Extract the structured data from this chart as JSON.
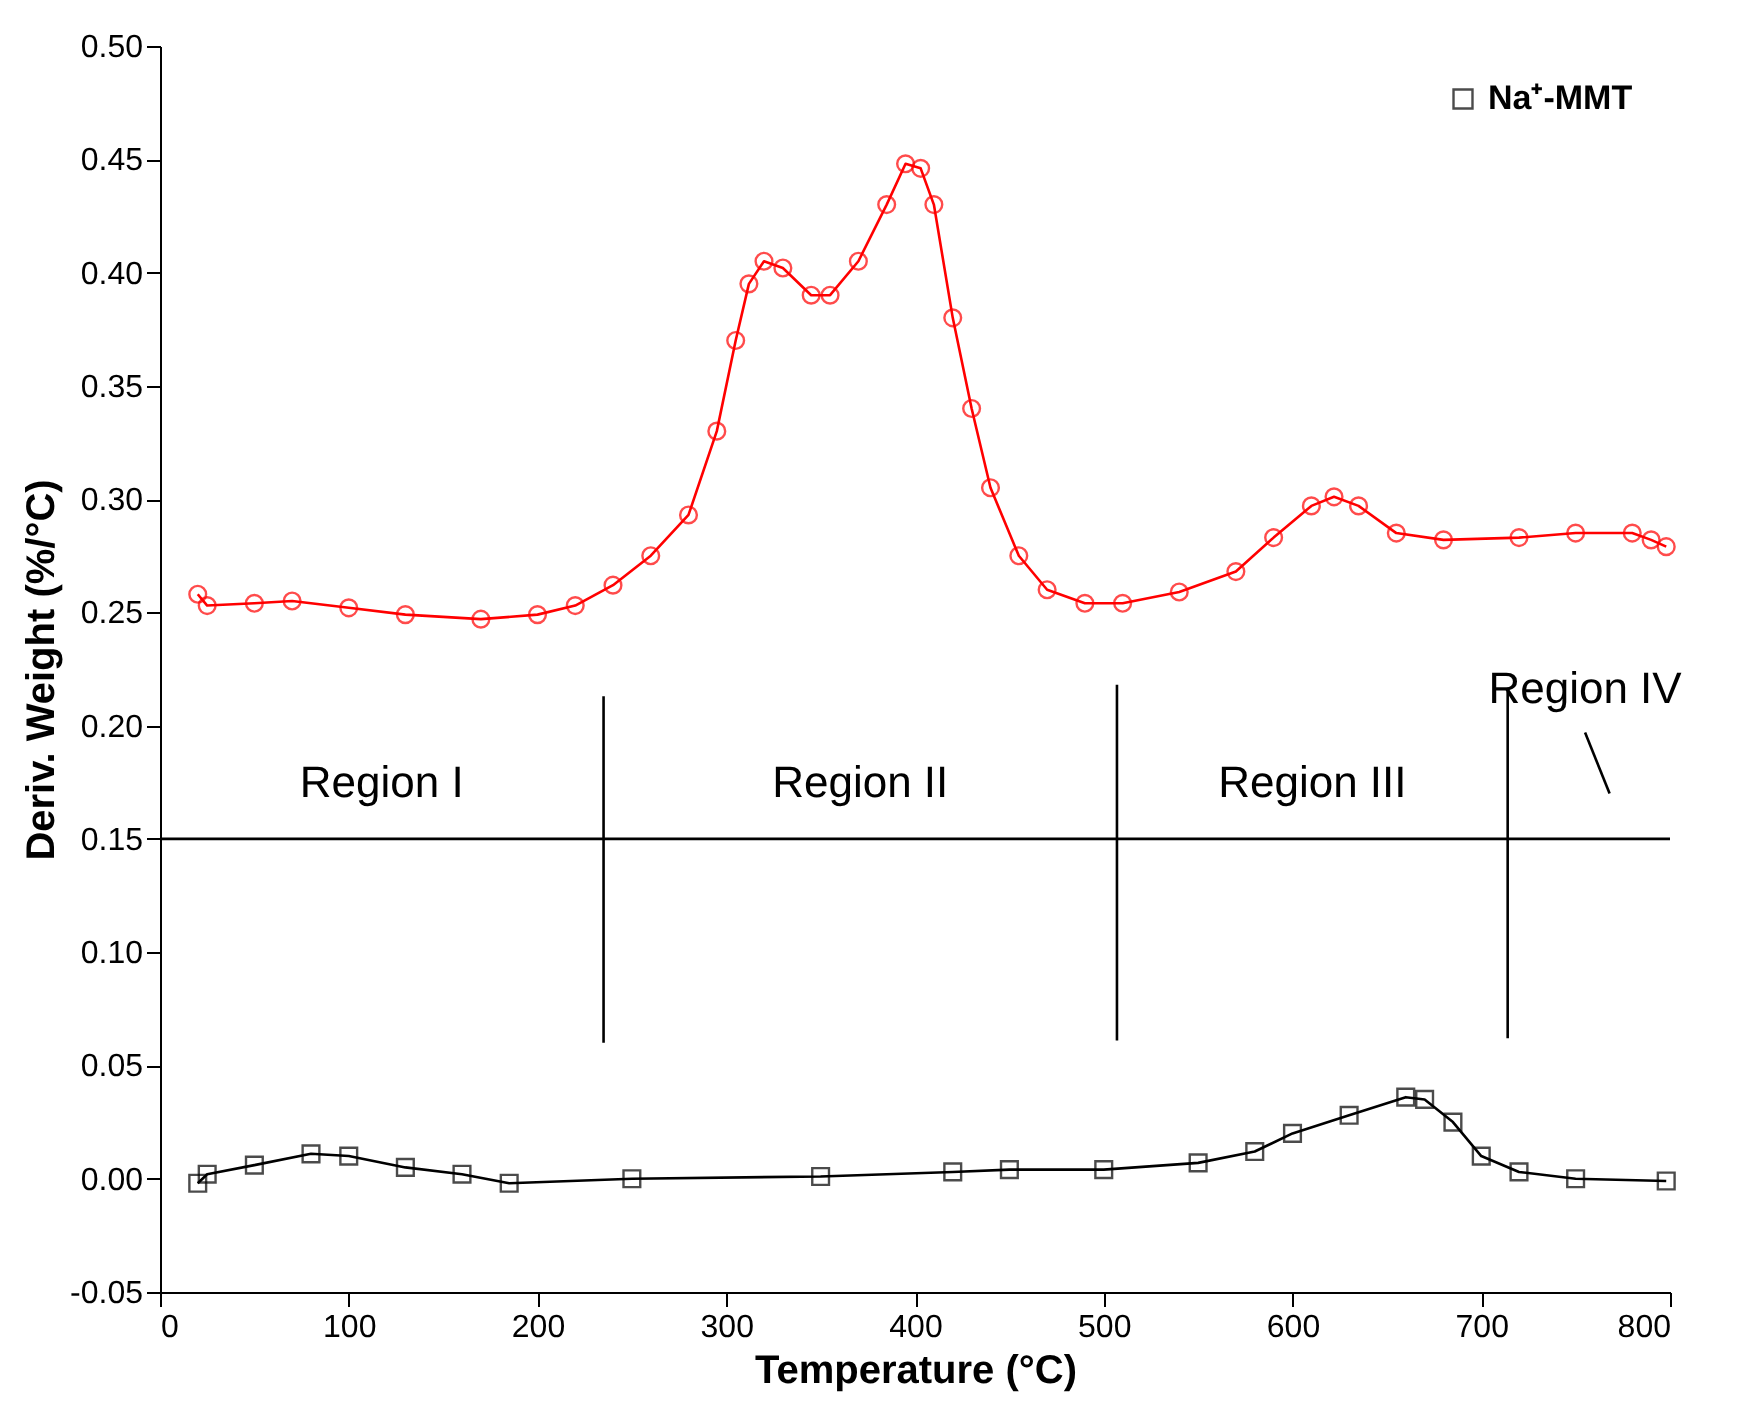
{
  "chart_data": {
    "type": "line",
    "xlabel": "Temperature (°C)",
    "ylabel": "Deriv. Weight (%/°C)",
    "xlim": [
      0,
      800
    ],
    "xticks": [
      0,
      100,
      200,
      300,
      400,
      500,
      600,
      700,
      800
    ],
    "ylim": [
      -0.05,
      0.5
    ],
    "yticks": [
      {
        "value": -0.05,
        "label": "-0.05"
      },
      {
        "value": 0,
        "label": "0.00"
      },
      {
        "value": 0.05,
        "label": "0.05"
      },
      {
        "value": 0.1,
        "label": "0.10"
      },
      {
        "value": 0.15,
        "label": "0.15"
      },
      {
        "value": 0.2,
        "label": "0.20"
      },
      {
        "value": 0.25,
        "label": "0.25"
      },
      {
        "value": 0.3,
        "label": "0.30"
      },
      {
        "value": 0.35,
        "label": "0.35"
      },
      {
        "value": 0.4,
        "label": "0.40"
      },
      {
        "value": 0.45,
        "label": "0.45"
      },
      {
        "value": 0.5,
        "label": "0.50"
      }
    ],
    "grid": false,
    "legend": "top right",
    "line_style": "solid",
    "series": [
      {
        "name": "Na⁺-MMT",
        "color": "#000000",
        "marker": "square",
        "x": [
          20,
          25,
          50,
          80,
          100,
          130,
          160,
          185,
          250,
          350,
          420,
          450,
          500,
          550,
          580,
          600,
          630,
          660,
          670,
          685,
          700,
          720,
          750,
          798
        ],
        "values": [
          -0.002,
          0.002,
          0.006,
          0.011,
          0.01,
          0.005,
          0.002,
          -0.002,
          0,
          0.001,
          0.003,
          0.004,
          0.004,
          0.007,
          0.012,
          0.02,
          0.028,
          0.036,
          0.035,
          0.025,
          0.01,
          0.003,
          0,
          -0.001
        ]
      },
      {
        "color": "#ff0000",
        "marker": "circle",
        "x": [
          20,
          25,
          50,
          70,
          100,
          130,
          170,
          200,
          220,
          240,
          260,
          280,
          295,
          305,
          312,
          320,
          330,
          345,
          355,
          370,
          385,
          395,
          403,
          410,
          420,
          430,
          440,
          455,
          470,
          490,
          510,
          540,
          570,
          590,
          610,
          622,
          635,
          655,
          680,
          720,
          750,
          780,
          790,
          798
        ],
        "values": [
          0.258,
          0.253,
          0.254,
          0.255,
          0.252,
          0.249,
          0.247,
          0.249,
          0.253,
          0.262,
          0.275,
          0.293,
          0.33,
          0.37,
          0.395,
          0.405,
          0.402,
          0.39,
          0.39,
          0.405,
          0.43,
          0.448,
          0.446,
          0.43,
          0.38,
          0.34,
          0.305,
          0.275,
          0.26,
          0.254,
          0.254,
          0.259,
          0.268,
          0.283,
          0.297,
          0.301,
          0.297,
          0.285,
          0.282,
          0.283,
          0.285,
          0.285,
          0.282,
          0.279
        ]
      },
      {
        "type": "line",
        "color": "#000000",
        "marker": "none",
        "x": [
          235,
          235
        ],
        "values": [
          0.06,
          0.213
        ]
      },
      {
        "type": "line",
        "color": "#000000",
        "marker": "none",
        "x": [
          507,
          507
        ],
        "values": [
          0.061,
          0.218
        ]
      },
      {
        "type": "line",
        "color": "#000000",
        "marker": "none",
        "x": [
          714,
          714
        ],
        "values": [
          0.062,
          0.215
        ]
      },
      {
        "type": "line",
        "color": "#000000",
        "marker": "none",
        "x": [
          755,
          768
        ],
        "values": [
          0.197,
          0.17
        ]
      }
    ],
    "ref_lines": [
      {
        "axis": "y",
        "value": 0.15,
        "color": "#000000",
        "line_style": "solid"
      }
    ],
    "annotations": [
      "Region I",
      "Region II",
      "Region III",
      "Region IV"
    ]
  }
}
